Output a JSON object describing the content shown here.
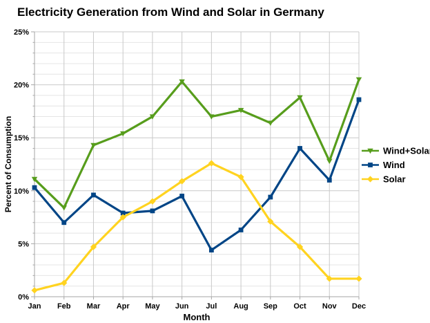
{
  "chart_data": {
    "type": "line",
    "title": "Electricity Generation from Wind and Solar in Germany",
    "xlabel": "Month",
    "ylabel": "Percent of Consumption",
    "categories": [
      "Jan",
      "Feb",
      "Mar",
      "Apr",
      "May",
      "Jun",
      "Jul",
      "Aug",
      "Sep",
      "Oct",
      "Nov",
      "Dec"
    ],
    "ylim": [
      0,
      25
    ],
    "y_major_step": 5,
    "y_minor_step": 1,
    "y_tick_suffix": "%",
    "grid": true,
    "legend_position": "right",
    "series": [
      {
        "name": "Wind+Solar",
        "color": "#579D1C",
        "marker": "triangle-down",
        "values": [
          11.1,
          8.4,
          14.3,
          15.4,
          17.0,
          20.3,
          17.0,
          17.6,
          16.4,
          18.8,
          12.8,
          20.5
        ]
      },
      {
        "name": "Wind",
        "color": "#004586",
        "marker": "square",
        "values": [
          10.3,
          7.0,
          9.6,
          7.9,
          8.1,
          9.5,
          4.4,
          6.3,
          9.4,
          14.0,
          11.0,
          18.6
        ]
      },
      {
        "name": "Solar",
        "color": "#FFD320",
        "marker": "diamond",
        "values": [
          0.6,
          1.3,
          4.7,
          7.5,
          9.0,
          10.9,
          12.6,
          11.3,
          7.1,
          4.7,
          1.7,
          1.7
        ]
      }
    ],
    "colors": {
      "text": "#000000",
      "background": "#ffffff",
      "grid_major": "#c9c9c9",
      "grid_minor": "#e4e4e4",
      "axis": "#a6a6a6"
    }
  }
}
